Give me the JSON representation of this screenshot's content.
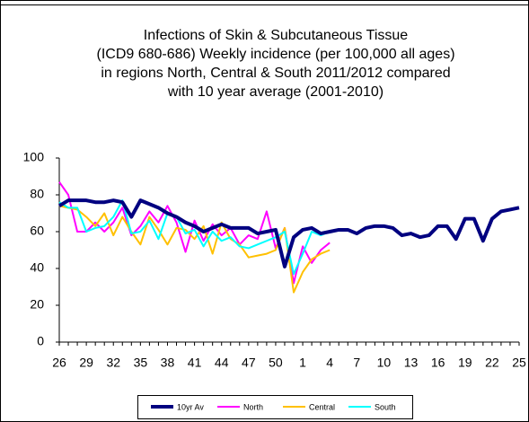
{
  "chart_data": {
    "type": "line",
    "title": [
      "Infections of Skin & Subcutaneous Tissue",
      "(ICD9 680-686) Weekly incidence (per 100,000 all ages)",
      "in regions North, Central & South 2011/2012 compared",
      "with 10 year average (2001-2010)"
    ],
    "categories": [
      "26",
      null,
      null,
      "29",
      null,
      null,
      "32",
      null,
      null,
      "35",
      null,
      null,
      "38",
      null,
      null,
      "41",
      null,
      null,
      "44",
      null,
      null,
      "47",
      null,
      null,
      "50",
      null,
      null,
      "1",
      null,
      null,
      "4",
      null,
      null,
      "7",
      null,
      null,
      "10",
      null,
      null,
      "13",
      null,
      null,
      "16",
      null,
      null,
      "19",
      null,
      null,
      "22",
      null,
      null,
      "25"
    ],
    "ylim": [
      0,
      100
    ],
    "yticks": [
      0,
      20,
      40,
      60,
      80,
      100
    ],
    "grid": false,
    "legend": "bottom",
    "series": [
      {
        "name": "10yr Av",
        "color": "#000080",
        "values": [
          74,
          77,
          77,
          77,
          76,
          76,
          77,
          76,
          68,
          77,
          75,
          73,
          70,
          68,
          65,
          63,
          60,
          62,
          64,
          62,
          62,
          62,
          59,
          60,
          61,
          41,
          57,
          61,
          62,
          59,
          60,
          61,
          61,
          59,
          62,
          63,
          63,
          62,
          58,
          59,
          57,
          58,
          63,
          63,
          56,
          67,
          67,
          55,
          67,
          71,
          72,
          73
        ]
      },
      {
        "name": "North",
        "color": "#ff00ff",
        "values": [
          87,
          80,
          60,
          60,
          65,
          60,
          65,
          73,
          58,
          63,
          71,
          65,
          74,
          65,
          49,
          66,
          55,
          64,
          58,
          62,
          53,
          58,
          56,
          71,
          51,
          62,
          32,
          52,
          43,
          50,
          54,
          null,
          null,
          null,
          null,
          null,
          null,
          null,
          null,
          null,
          null,
          null,
          null,
          null,
          null,
          null,
          null,
          null,
          null,
          null,
          null,
          null
        ]
      },
      {
        "name": "Central",
        "color": "#ffc000",
        "values": [
          74,
          73,
          72,
          68,
          63,
          70,
          58,
          68,
          60,
          53,
          68,
          61,
          53,
          62,
          61,
          56,
          63,
          48,
          65,
          56,
          53,
          46,
          47,
          48,
          50,
          62,
          27,
          38,
          45,
          48,
          50,
          null,
          null,
          null,
          null,
          null,
          null,
          null,
          null,
          null,
          null,
          null,
          null,
          null,
          null,
          null,
          null,
          null,
          null,
          null,
          null,
          null
        ]
      },
      {
        "name": "South",
        "color": "#00ffff",
        "values": [
          76,
          73,
          73,
          60,
          62,
          63,
          68,
          77,
          59,
          60,
          66,
          56,
          70,
          68,
          59,
          61,
          52,
          60,
          55,
          57,
          52,
          51,
          53,
          55,
          57,
          60,
          37,
          48,
          60,
          58,
          60,
          null,
          null,
          null,
          null,
          null,
          null,
          null,
          null,
          null,
          null,
          null,
          null,
          null,
          null,
          null,
          null,
          null,
          null,
          null,
          null,
          null
        ]
      }
    ]
  }
}
